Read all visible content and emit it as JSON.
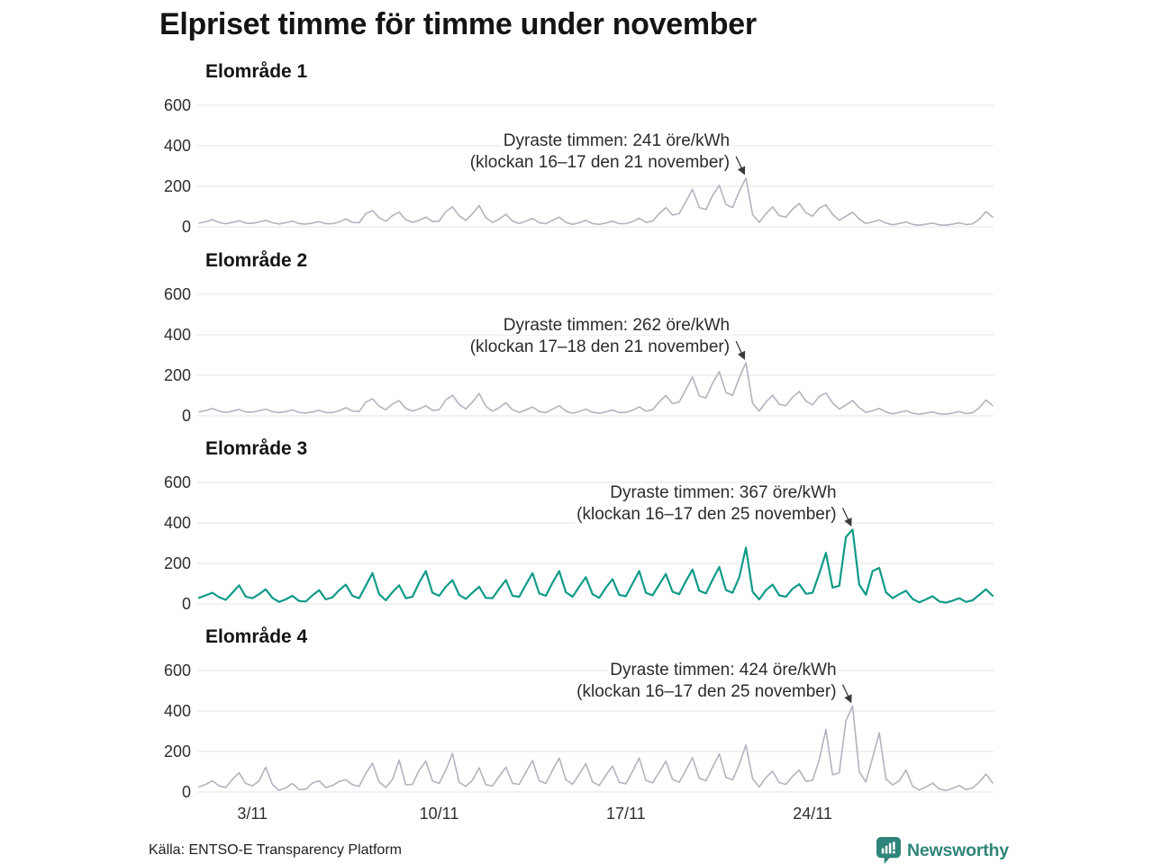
{
  "page": {
    "title": "Elpriset timme för timme under november",
    "source": "Källa: ENTSO-E Transparency Platform",
    "logo_text": "Newsworthy"
  },
  "colors": {
    "accent_teal": "#119a88",
    "series_gray": "#b3b3c1",
    "grid": "#e3e3e6",
    "arrow": "#3a3a3a",
    "logo_teal": "#2f8579"
  },
  "chart_data": {
    "type": "line",
    "title": "Elpriset timme för timme under november",
    "y_unit": "öre/kWh",
    "x_unit": "datum i november",
    "grid": true,
    "y_ticks": [
      600,
      400,
      200,
      0
    ],
    "ylim": [
      0,
      650
    ],
    "x_ticks": [
      "3/11",
      "10/11",
      "17/11",
      "24/11"
    ],
    "x_tick_days": [
      2,
      9,
      16,
      23
    ],
    "samples_per_day": 4,
    "days_shown": 29.75,
    "charts": [
      {
        "label": "Elområde 1",
        "color": "#b3b3c1",
        "annotation": {
          "line1": "Dyraste timmen: 241 öre/kWh",
          "line2": "(klockan 16–17 den 21 november)"
        },
        "peak": {
          "value": 241,
          "time": "klockan 16–17 den 21 november"
        },
        "values": [
          18,
          25,
          35,
          22,
          15,
          22,
          30,
          18,
          17,
          24,
          32,
          20,
          14,
          20,
          28,
          16,
          13,
          18,
          26,
          15,
          15,
          24,
          38,
          22,
          20,
          65,
          80,
          45,
          28,
          55,
          72,
          35,
          22,
          32,
          48,
          26,
          28,
          75,
          98,
          55,
          32,
          65,
          105,
          45,
          22,
          38,
          62,
          28,
          16,
          28,
          42,
          20,
          15,
          32,
          48,
          22,
          12,
          20,
          32,
          16,
          12,
          18,
          28,
          15,
          16,
          26,
          42,
          22,
          28,
          65,
          95,
          58,
          65,
          125,
          185,
          95,
          85,
          155,
          205,
          110,
          95,
          175,
          241,
          60,
          22,
          65,
          98,
          55,
          48,
          88,
          115,
          70,
          52,
          92,
          108,
          62,
          32,
          52,
          72,
          38,
          16,
          24,
          34,
          18,
          10,
          16,
          24,
          12,
          8,
          13,
          18,
          10,
          8,
          13,
          20,
          11,
          14,
          38,
          75,
          48
        ]
      },
      {
        "label": "Elområde 2",
        "color": "#b3b3c1",
        "annotation": {
          "line1": "Dyraste timmen: 262 öre/kWh",
          "line2": "(klockan 17–18 den 21 november)"
        },
        "peak": {
          "value": 262,
          "time": "klockan 17–18 den 21 november"
        },
        "values": [
          19,
          26,
          36,
          23,
          16,
          23,
          31,
          19,
          18,
          25,
          33,
          21,
          15,
          21,
          29,
          17,
          14,
          19,
          27,
          16,
          16,
          25,
          40,
          23,
          21,
          68,
          84,
          47,
          30,
          58,
          75,
          37,
          23,
          34,
          50,
          27,
          30,
          78,
          102,
          57,
          34,
          68,
          110,
          47,
          23,
          40,
          65,
          30,
          17,
          29,
          44,
          21,
          16,
          33,
          50,
          23,
          13,
          21,
          33,
          17,
          13,
          19,
          29,
          16,
          17,
          27,
          44,
          23,
          30,
          68,
          100,
          60,
          68,
          130,
          192,
          98,
          88,
          162,
          218,
          115,
          100,
          188,
          262,
          62,
          23,
          68,
          102,
          57,
          50,
          92,
          120,
          73,
          54,
          96,
          112,
          64,
          33,
          54,
          75,
          40,
          17,
          25,
          36,
          19,
          10,
          17,
          25,
          13,
          8,
          14,
          19,
          10,
          8,
          14,
          21,
          11,
          15,
          40,
          78,
          50
        ]
      },
      {
        "label": "Elområde 3",
        "color": "#119a88",
        "annotation": {
          "line1": "Dyraste timmen: 367 öre/kWh",
          "line2": "(klockan 16–17 den 25 november)"
        },
        "peak": {
          "value": 367,
          "time": "klockan 16–17 den 25 november"
        },
        "values": [
          30,
          42,
          55,
          33,
          20,
          55,
          92,
          36,
          28,
          48,
          72,
          30,
          10,
          22,
          40,
          14,
          12,
          42,
          68,
          22,
          32,
          68,
          95,
          40,
          28,
          90,
          152,
          48,
          18,
          58,
          92,
          28,
          35,
          105,
          162,
          55,
          40,
          85,
          118,
          45,
          25,
          55,
          85,
          30,
          28,
          75,
          118,
          40,
          35,
          95,
          152,
          52,
          40,
          105,
          162,
          58,
          35,
          85,
          132,
          48,
          30,
          80,
          122,
          45,
          38,
          100,
          162,
          55,
          42,
          95,
          148,
          60,
          48,
          112,
          170,
          65,
          52,
          120,
          182,
          68,
          55,
          132,
          278,
          60,
          22,
          68,
          95,
          42,
          35,
          75,
          98,
          50,
          55,
          150,
          252,
          80,
          90,
          330,
          367,
          95,
          45,
          162,
          178,
          58,
          28,
          48,
          65,
          24,
          8,
          22,
          38,
          12,
          6,
          16,
          28,
          10,
          18,
          45,
          72,
          40
        ]
      },
      {
        "label": "Elområde 4",
        "color": "#b3b3c1",
        "annotation": {
          "line1": "Dyraste timmen: 424 öre/kWh",
          "line2": "(klockan 16–17 den 25 november)"
        },
        "peak": {
          "value": 424,
          "time": "klockan 16–17 den 25 november"
        },
        "values": [
          25,
          38,
          55,
          30,
          22,
          62,
          95,
          42,
          30,
          55,
          122,
          38,
          8,
          20,
          42,
          12,
          14,
          45,
          55,
          22,
          32,
          52,
          60,
          36,
          28,
          92,
          142,
          50,
          22,
          62,
          158,
          35,
          38,
          108,
          152,
          55,
          42,
          108,
          190,
          48,
          28,
          58,
          120,
          36,
          30,
          78,
          122,
          42,
          38,
          98,
          155,
          55,
          42,
          108,
          168,
          60,
          38,
          88,
          140,
          50,
          32,
          82,
          128,
          48,
          40,
          102,
          168,
          58,
          45,
          98,
          152,
          62,
          48,
          108,
          170,
          68,
          55,
          122,
          188,
          72,
          60,
          135,
          232,
          65,
          25,
          72,
          102,
          46,
          38,
          78,
          108,
          52,
          58,
          160,
          308,
          85,
          95,
          352,
          424,
          100,
          50,
          170,
          292,
          65,
          35,
          55,
          108,
          28,
          10,
          25,
          44,
          15,
          8,
          18,
          32,
          12,
          20,
          50,
          88,
          45
        ]
      }
    ]
  }
}
